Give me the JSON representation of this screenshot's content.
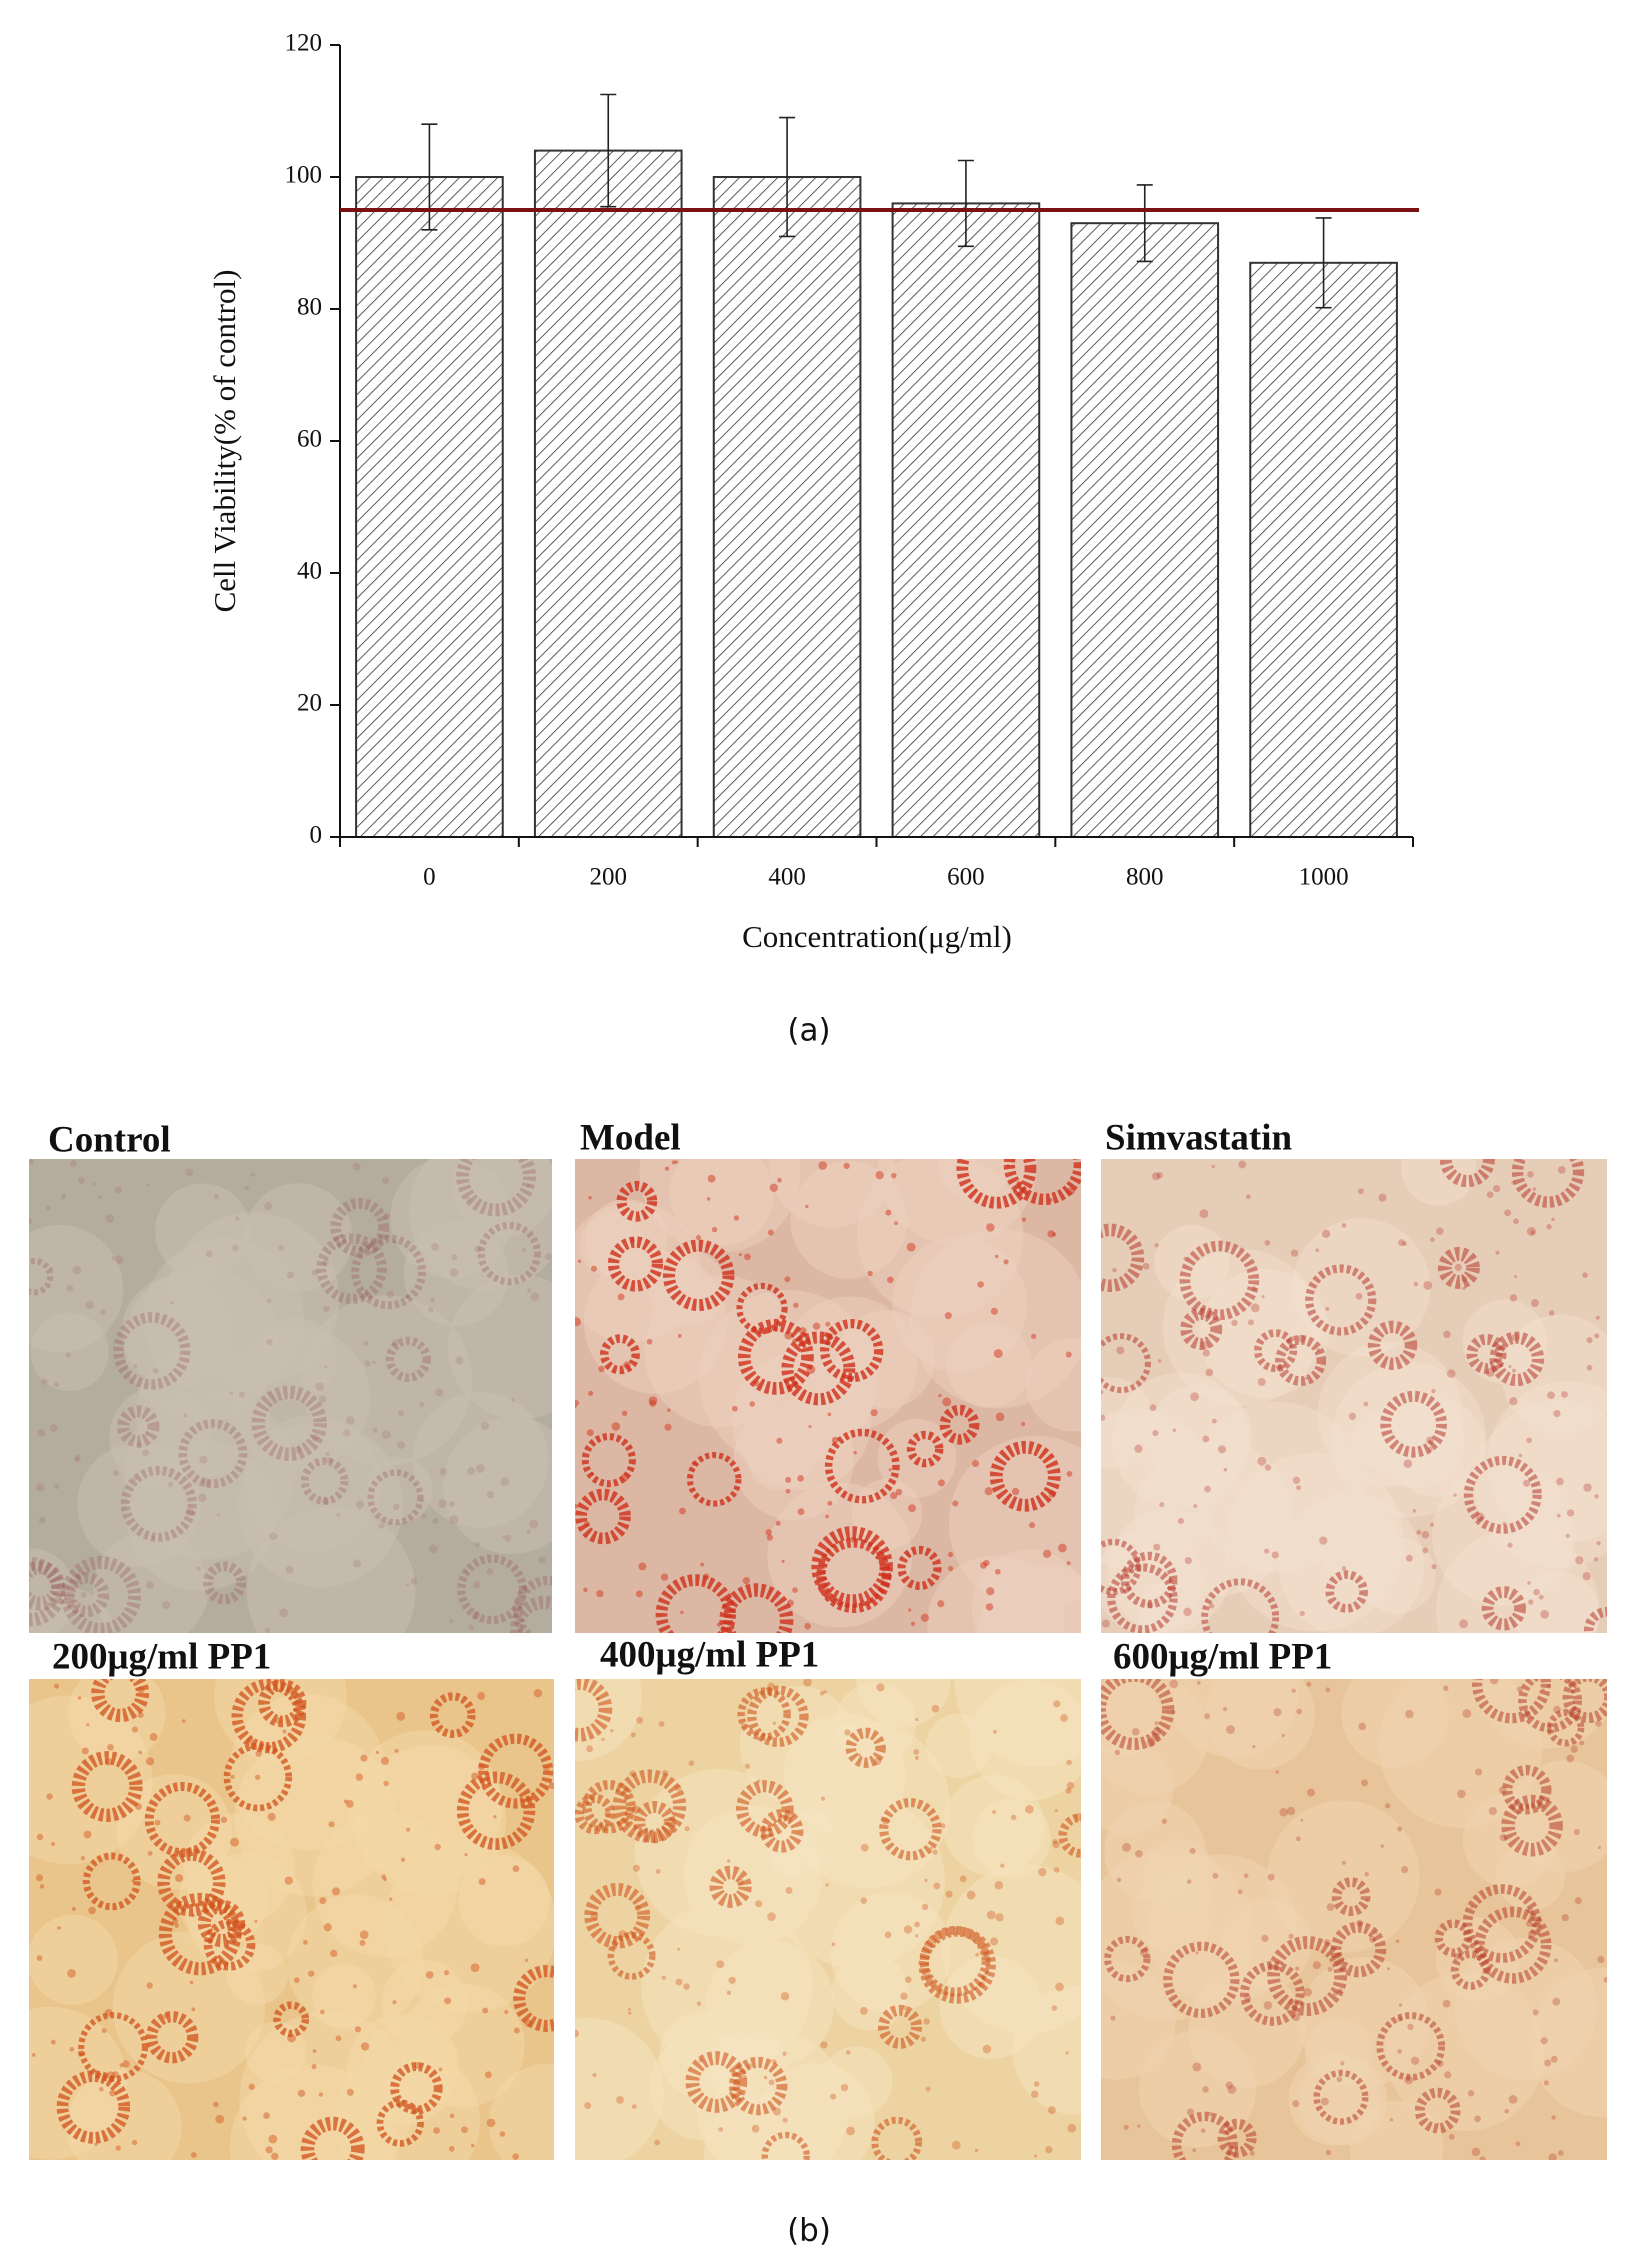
{
  "chart_data": {
    "type": "bar",
    "y_label": "Cell Viability(% of control)",
    "x_label": "Concentration(μg/ml)",
    "categories": [
      "0",
      "200",
      "400",
      "600",
      "800",
      "1000"
    ],
    "values": [
      100,
      104,
      100,
      96,
      93,
      87
    ],
    "errors": [
      8,
      8.5,
      9,
      6.5,
      5.8,
      6.8
    ],
    "color": "#333333",
    "hatch": true,
    "reference_line": 95,
    "reference_color": "#7b1113",
    "ylim": [
      0,
      120
    ],
    "yticks": [
      0,
      20,
      40,
      60,
      80,
      100,
      120
    ]
  },
  "captions": [
    "(a)",
    "(b)"
  ],
  "panels": [
    {
      "label": "Control"
    },
    {
      "label": "Model"
    },
    {
      "label": "Simvastatin"
    },
    {
      "label": "200μg/ml PP1"
    },
    {
      "label": "400μg/ml PP1"
    },
    {
      "label": "600μg/ml PP1"
    }
  ]
}
